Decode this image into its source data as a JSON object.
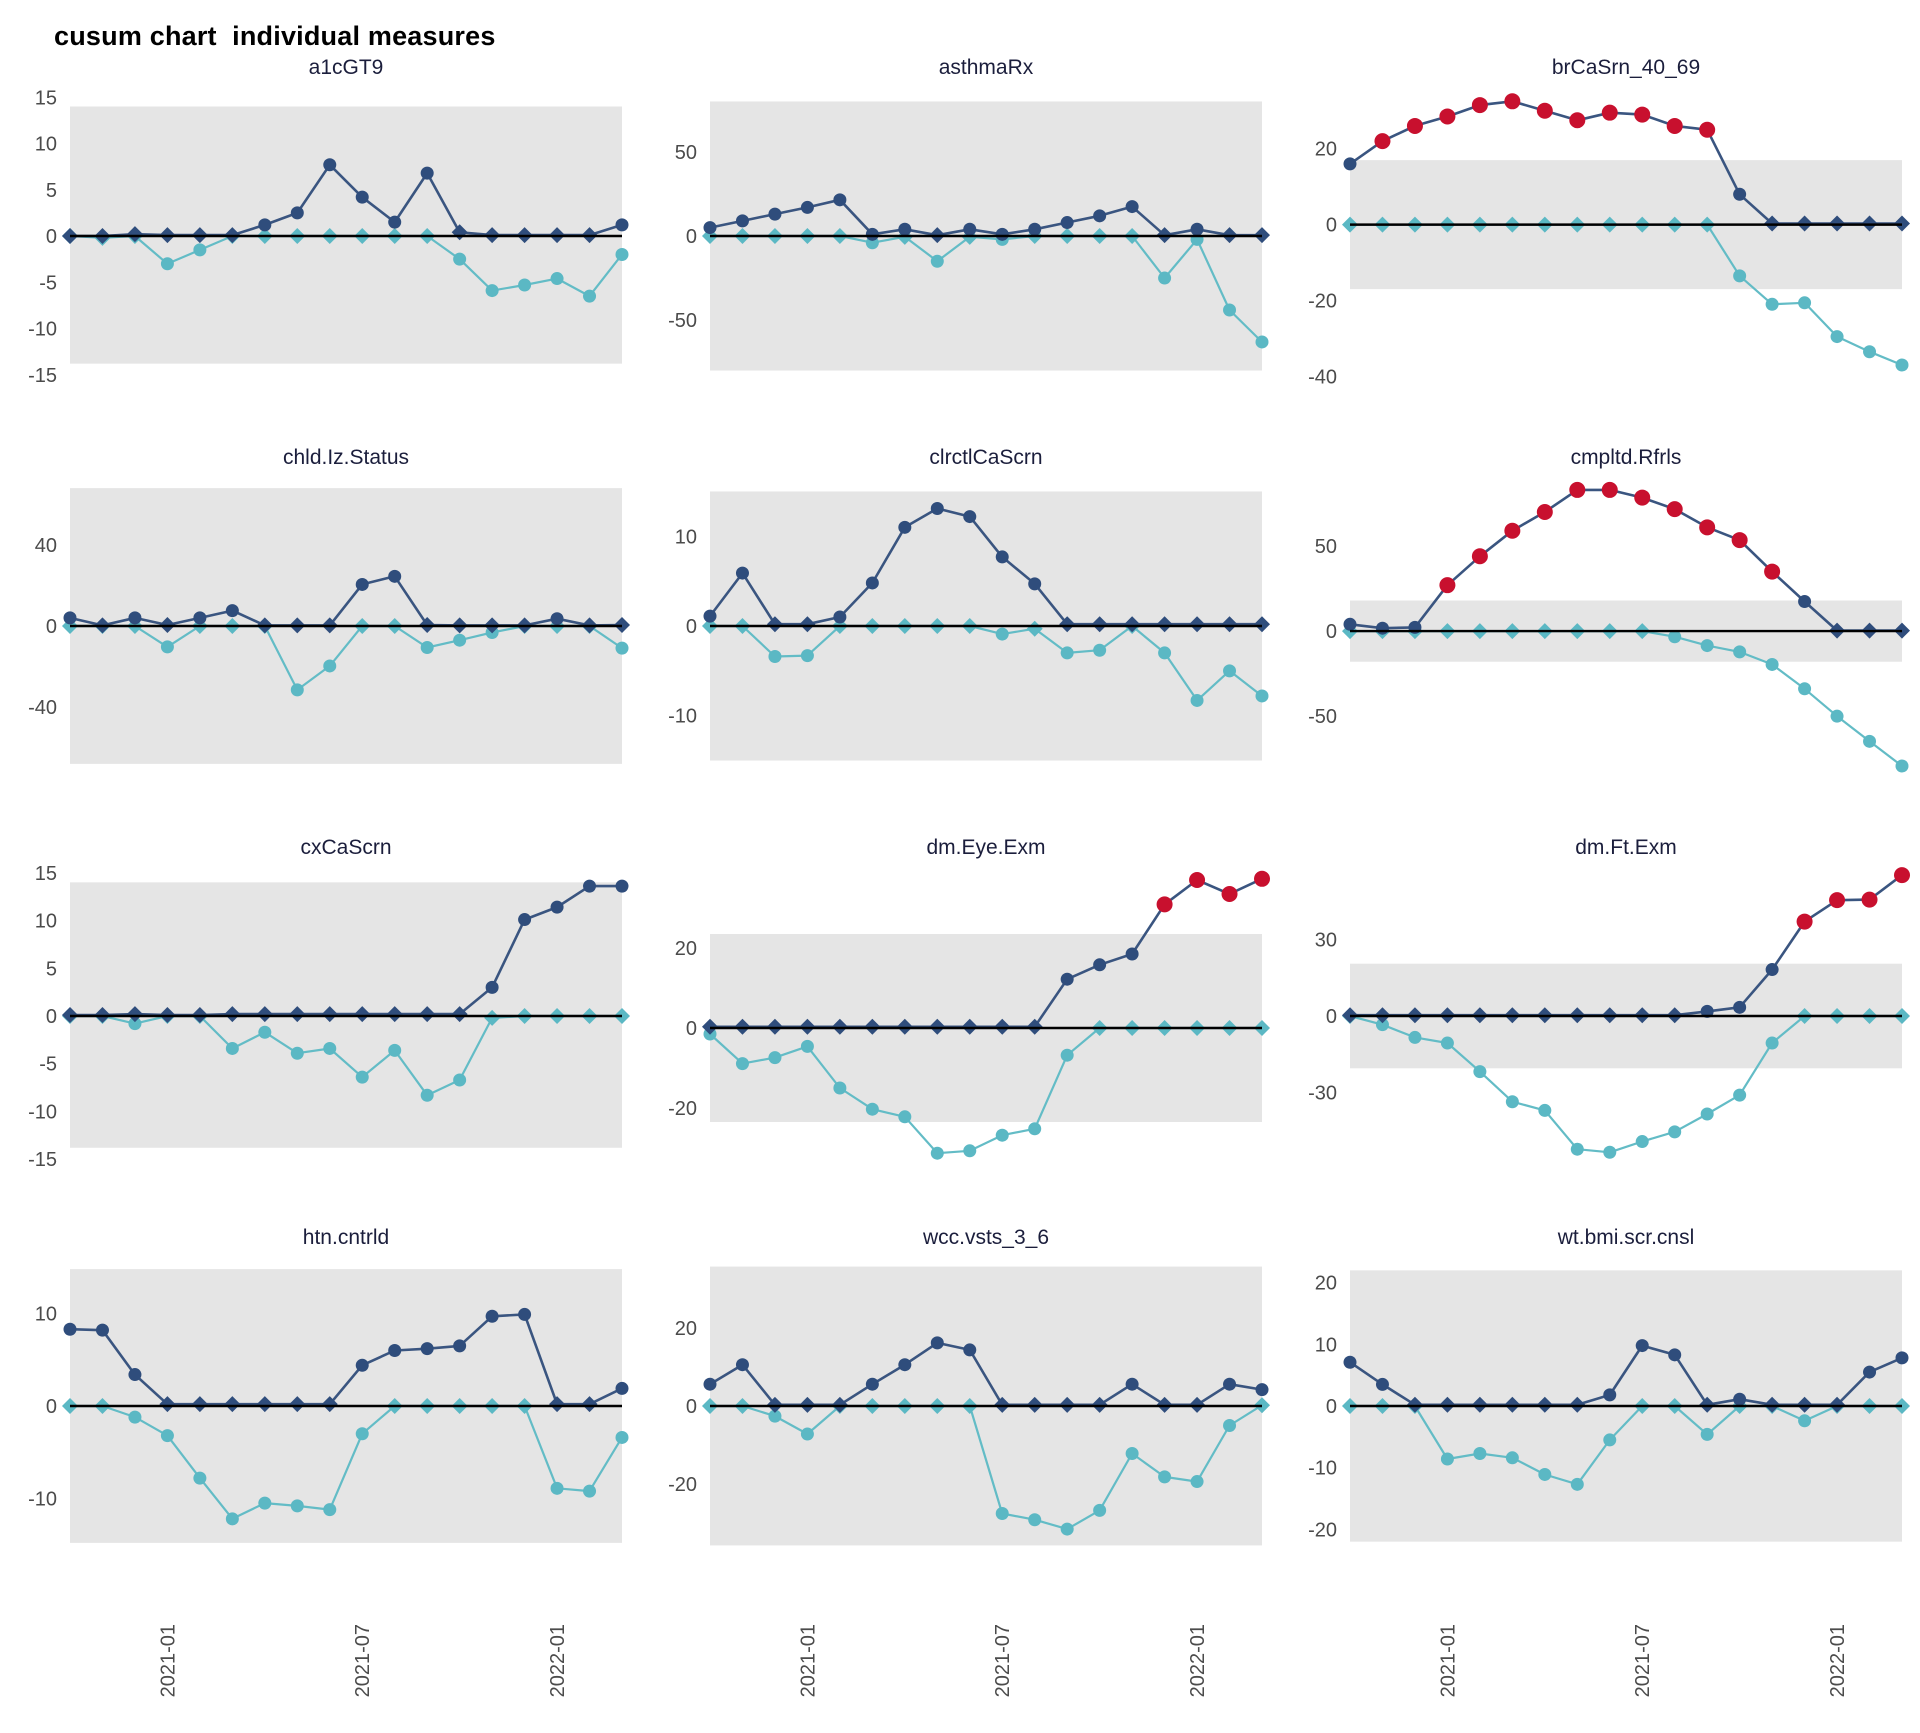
{
  "title": "cusum chart  individual measures",
  "colors": {
    "cusum_up_line": "#3a5580",
    "cusum_up_marker": "#2f4d7c",
    "cusum_down_line": "#63bcc6",
    "cusum_down_marker": "#5bb8c4",
    "signal_marker": "#c8102e",
    "control_band": "#e5e5e5",
    "zero_line": "#000000",
    "tick_label": "#4b4b4b",
    "facet_title": "#1b1e3c"
  },
  "x_axis": {
    "n_points": 18,
    "labels": [
      {
        "text": "2021-01",
        "point": 4
      },
      {
        "text": "2021-07",
        "point": 10
      },
      {
        "text": "2022-01",
        "point": 16
      }
    ]
  },
  "chart_data": [
    {
      "type": "line",
      "name": "a1cGT9",
      "ylim": [
        -16,
        16
      ],
      "band": [
        -13.8,
        14
      ],
      "yticks": [
        15,
        10,
        5,
        0,
        -5,
        -10,
        -15
      ],
      "up": {
        "values": [
          0,
          0,
          0.2,
          0.1,
          0.1,
          0.1,
          1.2,
          2.5,
          7.7,
          4.2,
          1.5,
          6.8,
          0.4,
          0.1,
          0.1,
          0.1,
          0.1,
          1.2
        ],
        "signals": []
      },
      "down": {
        "values": [
          0,
          -0.2,
          0,
          -3,
          -1.5,
          0,
          0,
          0,
          0,
          0,
          0,
          0,
          -2.5,
          -5.9,
          -5.3,
          -4.6,
          -6.5,
          -2
        ]
      }
    },
    {
      "type": "line",
      "name": "asthmaRx",
      "ylim": [
        -88,
        88
      ],
      "band": [
        -80,
        80
      ],
      "yticks": [
        50,
        0,
        -50
      ],
      "up": {
        "values": [
          5,
          9,
          13,
          17,
          21.5,
          1,
          4,
          0.5,
          4,
          1,
          4,
          8,
          12,
          17.5,
          0.5,
          4,
          0.5,
          0.5
        ],
        "signals": []
      },
      "down": {
        "values": [
          0,
          0,
          0,
          0,
          0,
          -4,
          -0.5,
          -15,
          -0.5,
          -2,
          0,
          0,
          0,
          0,
          -25,
          -2,
          -44,
          -63
        ]
      }
    },
    {
      "type": "line",
      "name": "brCaSrn_40_69",
      "ylim": [
        -42,
        36
      ],
      "band": [
        -17,
        17
      ],
      "yticks": [
        20,
        0,
        -20,
        -40
      ],
      "up": {
        "values": [
          16,
          22,
          26,
          28.5,
          31.5,
          32.5,
          30,
          27.5,
          29.5,
          29,
          26,
          25,
          8,
          0.3,
          0.3,
          0.3,
          0.3,
          0.3
        ],
        "signals": [
          2,
          3,
          4,
          5,
          6,
          7,
          8,
          9,
          10,
          11,
          12
        ]
      },
      "down": {
        "values": [
          0,
          0,
          0,
          0,
          0,
          0,
          0,
          0,
          0,
          0,
          0,
          0,
          -13.5,
          -21,
          -20.6,
          -29.5,
          -33.5,
          -37
        ]
      }
    },
    {
      "type": "line",
      "name": "chld.Iz.Status",
      "ylim": [
        -73,
        73
      ],
      "band": [
        -68,
        68
      ],
      "yticks": [
        40,
        0,
        -40
      ],
      "up": {
        "values": [
          4,
          0.3,
          4,
          0.5,
          4,
          7.6,
          0.3,
          0.3,
          0.3,
          20.5,
          24.5,
          0.5,
          0.3,
          0.3,
          0.3,
          3.6,
          0.3,
          0.5
        ],
        "signals": []
      },
      "down": {
        "values": [
          0,
          0,
          0,
          -10.3,
          0,
          0,
          0,
          -31.5,
          -19.7,
          0,
          0,
          -10.6,
          -7,
          -3.2,
          0,
          0,
          0,
          -10.9
        ]
      }
    },
    {
      "type": "line",
      "name": "clrctlCaScrn",
      "ylim": [
        -16.5,
        16.5
      ],
      "band": [
        -15,
        15
      ],
      "yticks": [
        10,
        0,
        -10
      ],
      "up": {
        "values": [
          1.1,
          5.9,
          0.2,
          0.2,
          1,
          4.8,
          11,
          13.1,
          12.2,
          7.7,
          4.7,
          0.2,
          0.2,
          0.2,
          0.2,
          0.2,
          0.2,
          0.2
        ],
        "signals": []
      },
      "down": {
        "values": [
          0,
          0,
          -3.4,
          -3.3,
          0,
          0,
          0,
          0,
          0,
          -0.9,
          -0.3,
          -3,
          -2.7,
          0,
          -3,
          -8.3,
          -5,
          -7.8
        ]
      }
    },
    {
      "type": "line",
      "name": "cmpltd.Rfrls",
      "ylim": [
        -84,
        90
      ],
      "band": [
        -18,
        18
      ],
      "yticks": [
        50,
        0,
        -50
      ],
      "up": {
        "values": [
          4,
          1.7,
          2.2,
          27,
          44,
          59,
          70,
          83,
          83,
          78.5,
          71.7,
          61,
          53.5,
          35,
          17.4,
          0.3,
          0.3,
          0.3
        ],
        "signals": [
          4,
          5,
          6,
          7,
          8,
          9,
          10,
          11,
          12,
          13,
          14
        ]
      },
      "down": {
        "values": [
          0,
          0,
          0,
          0,
          0,
          0,
          0,
          0,
          0,
          0,
          -3.3,
          -8.5,
          -12.2,
          -19.6,
          -33.9,
          -50,
          -64.8,
          -79.3
        ]
      }
    },
    {
      "type": "line",
      "name": "cxCaScrn",
      "ylim": [
        -15.5,
        15.5
      ],
      "band": [
        -13.8,
        14
      ],
      "yticks": [
        15,
        10,
        5,
        0,
        -5,
        -10,
        -15
      ],
      "up": {
        "values": [
          0.1,
          0.1,
          0.2,
          0.1,
          0.1,
          0.2,
          0.2,
          0.2,
          0.2,
          0.2,
          0.2,
          0.2,
          0.2,
          3,
          10.1,
          11.4,
          13.6,
          13.6
        ],
        "signals": []
      },
      "down": {
        "values": [
          0,
          0,
          -0.8,
          0,
          0,
          -3.4,
          -1.7,
          -3.9,
          -3.4,
          -6.4,
          -3.6,
          -8.3,
          -6.7,
          -0.2,
          0,
          0,
          0,
          0
        ]
      }
    },
    {
      "type": "line",
      "name": "dm.Eye.Exm",
      "ylim": [
        -34,
        40
      ],
      "band": [
        -23.5,
        23.5
      ],
      "yticks": [
        20,
        0,
        -20
      ],
      "up": {
        "values": [
          0.3,
          0.3,
          0.3,
          0.3,
          0.3,
          0.3,
          0.3,
          0.3,
          0.3,
          0.3,
          0.3,
          12.2,
          15.8,
          18.5,
          30.9,
          37,
          33.5,
          37.3
        ],
        "signals": [
          15,
          16,
          17,
          18
        ]
      },
      "down": {
        "values": [
          -1.5,
          -8.9,
          -7.4,
          -4.6,
          -15,
          -20.3,
          -22.2,
          -31.3,
          -30.7,
          -26.8,
          -25.2,
          -6.8,
          0,
          0,
          0,
          0,
          0,
          0
        ]
      }
    },
    {
      "type": "line",
      "name": "dm.Ft.Exm",
      "ylim": [
        -58,
        58
      ],
      "band": [
        -20.5,
        20.5
      ],
      "yticks": [
        30,
        0,
        -30
      ],
      "up": {
        "values": [
          0.3,
          0.3,
          0.3,
          0.3,
          0.3,
          0.3,
          0.3,
          0.3,
          0.3,
          0.3,
          0.3,
          1.8,
          3.4,
          18.2,
          37,
          45.4,
          45.6,
          55.2
        ],
        "signals": [
          15,
          16,
          17,
          18
        ]
      },
      "down": {
        "values": [
          0,
          -3.4,
          -8.4,
          -10.6,
          -21.8,
          -33.6,
          -37,
          -52.2,
          -53.4,
          -49.2,
          -45.4,
          -38.4,
          -31,
          -10.6,
          0,
          0,
          0,
          0
        ]
      }
    },
    {
      "type": "line",
      "name": "htn.cntrld",
      "ylim": [
        -16,
        16
      ],
      "band": [
        -14.8,
        14.8
      ],
      "yticks": [
        10,
        0,
        -10
      ],
      "up": {
        "values": [
          8.3,
          8.2,
          3.4,
          0.2,
          0.2,
          0.2,
          0.2,
          0.2,
          0.2,
          4.4,
          6,
          6.2,
          6.5,
          9.7,
          9.9,
          0.2,
          0.2,
          1.9
        ],
        "signals": []
      },
      "down": {
        "values": [
          0,
          0,
          -1.2,
          -3.2,
          -7.8,
          -12.2,
          -10.5,
          -10.8,
          -11.2,
          -3,
          0,
          0,
          0,
          0,
          0,
          -8.9,
          -9.2,
          -3.4
        ]
      }
    },
    {
      "type": "line",
      "name": "wcc.vsts_3_6",
      "ylim": [
        -38,
        38
      ],
      "band": [
        -35.8,
        35.8
      ],
      "yticks": [
        20,
        0,
        -20
      ],
      "up": {
        "values": [
          5.6,
          10.6,
          0.3,
          0.3,
          0.3,
          5.6,
          10.6,
          16.2,
          14.4,
          0.3,
          0.3,
          0.3,
          0.3,
          5.6,
          0.3,
          0.3,
          5.6,
          4.2
        ],
        "signals": []
      },
      "down": {
        "values": [
          0,
          0,
          -2.6,
          -7.2,
          0,
          0,
          0,
          0,
          0,
          -27.6,
          -29.2,
          -31.6,
          -26.8,
          -12.2,
          -18.2,
          -19.4,
          -5,
          0.2
        ]
      }
    },
    {
      "type": "line",
      "name": "wt.bmi.scr.cnsl",
      "ylim": [
        -24,
        24
      ],
      "band": [
        -22,
        22
      ],
      "yticks": [
        20,
        10,
        0,
        -10,
        -20
      ],
      "up": {
        "values": [
          7.1,
          3.5,
          0.2,
          0.2,
          0.2,
          0.2,
          0.2,
          0.2,
          1.8,
          9.8,
          8.3,
          0.2,
          1.1,
          0.2,
          0.2,
          0.2,
          5.5,
          7.8
        ],
        "signals": []
      },
      "down": {
        "values": [
          0,
          0,
          0,
          -8.6,
          -7.7,
          -8.4,
          -11.1,
          -12.7,
          -5.5,
          0,
          0,
          -4.6,
          0,
          0,
          -2.4,
          0,
          0,
          0
        ]
      }
    }
  ]
}
